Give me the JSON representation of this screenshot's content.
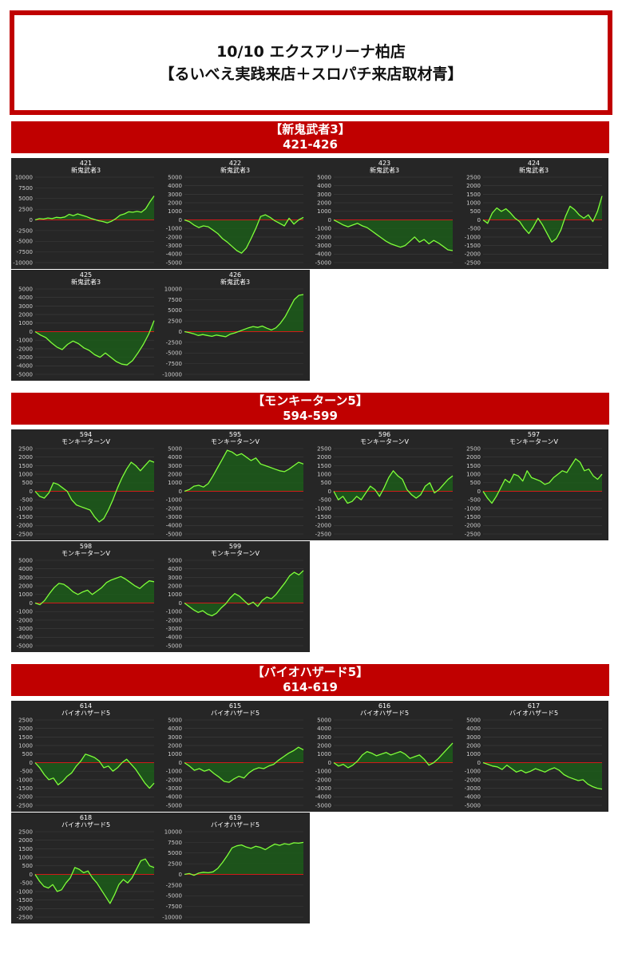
{
  "header": {
    "line1": "10/10 エクスアリーナ柏店",
    "line2": "【るいべえ実践来店＋スロパチ来店取材青】"
  },
  "sections": [
    {
      "label": "【新鬼武者3】",
      "range": "421-426"
    },
    {
      "label": "【モンキーターン5】",
      "range": "594-599"
    },
    {
      "label": "【バイオハザード5】",
      "range": "614-619"
    }
  ],
  "colors": {
    "line": "#7fff3a",
    "fill": "#1c5c1a",
    "zero": "#d11a1a",
    "banner": "#c00000",
    "panel": "#262626"
  },
  "chart_data": [
    {
      "type": "line",
      "machine": "421",
      "name": "新鬼武者3",
      "ylim": [
        -10000,
        10000
      ],
      "step": 2500,
      "values": [
        0,
        300,
        200,
        450,
        300,
        600,
        500,
        700,
        1300,
        1000,
        1400,
        1100,
        800,
        400,
        100,
        -200,
        -400,
        -700,
        -300,
        300,
        1100,
        1400,
        1900,
        1800,
        2000,
        1800,
        2600,
        4200,
        5600
      ]
    },
    {
      "type": "line",
      "machine": "422",
      "name": "新鬼武者3",
      "ylim": [
        -5000,
        5000
      ],
      "step": 1000,
      "values": [
        0,
        -200,
        -600,
        -900,
        -700,
        -800,
        -1200,
        -1600,
        -2200,
        -2600,
        -3100,
        -3600,
        -3900,
        -3300,
        -2200,
        -1000,
        400,
        600,
        300,
        -100,
        -400,
        -700,
        200,
        -500,
        0,
        300
      ]
    },
    {
      "type": "line",
      "machine": "423",
      "name": "新鬼武者3",
      "ylim": [
        -5000,
        5000
      ],
      "step": 1000,
      "values": [
        0,
        -300,
        -600,
        -800,
        -600,
        -400,
        -700,
        -900,
        -1300,
        -1700,
        -2100,
        -2500,
        -2800,
        -3000,
        -3200,
        -3000,
        -2500,
        -2000,
        -2600,
        -2300,
        -2800,
        -2400,
        -2700,
        -3100,
        -3500,
        -3600
      ]
    },
    {
      "type": "line",
      "machine": "424",
      "name": "新鬼武者3",
      "ylim": [
        -2500,
        2500
      ],
      "step": 500,
      "values": [
        0,
        -200,
        400,
        700,
        500,
        650,
        400,
        100,
        -100,
        -500,
        -800,
        -400,
        100,
        -300,
        -800,
        -1300,
        -1100,
        -600,
        200,
        800,
        600,
        300,
        100,
        300,
        -100,
        500,
        1400
      ]
    },
    {
      "type": "line",
      "machine": "425",
      "name": "新鬼武者3",
      "ylim": [
        -5000,
        5000
      ],
      "step": 1000,
      "values": [
        0,
        -400,
        -700,
        -1300,
        -1800,
        -2100,
        -1500,
        -1100,
        -1400,
        -1900,
        -2200,
        -2700,
        -3000,
        -2500,
        -3000,
        -3500,
        -3800,
        -3900,
        -3400,
        -2500,
        -1500,
        -300,
        1300
      ]
    },
    {
      "type": "line",
      "machine": "426",
      "name": "新鬼武者3",
      "ylim": [
        -10000,
        10000
      ],
      "step": 2500,
      "values": [
        0,
        -200,
        -500,
        -900,
        -700,
        -900,
        -1100,
        -800,
        -1000,
        -1200,
        -600,
        -300,
        100,
        500,
        900,
        1200,
        1000,
        1300,
        800,
        400,
        900,
        2000,
        3500,
        5500,
        7500,
        8500,
        8700
      ]
    },
    {
      "type": "line",
      "machine": "594",
      "name": "モンキーターンV",
      "ylim": [
        -2500,
        2500
      ],
      "step": 500,
      "values": [
        0,
        -300,
        -400,
        -100,
        500,
        400,
        200,
        0,
        -500,
        -800,
        -900,
        -1000,
        -1100,
        -1500,
        -1800,
        -1600,
        -1100,
        -500,
        200,
        800,
        1300,
        1700,
        1500,
        1200,
        1500,
        1800,
        1700
      ]
    },
    {
      "type": "line",
      "machine": "595",
      "name": "モンキーターンV",
      "ylim": [
        -5000,
        5000
      ],
      "step": 1000,
      "values": [
        0,
        200,
        600,
        700,
        500,
        900,
        1800,
        2800,
        3800,
        4800,
        4600,
        4200,
        4400,
        4000,
        3600,
        3900,
        3200,
        3000,
        2800,
        2600,
        2400,
        2300,
        2600,
        3000,
        3400,
        3200
      ]
    },
    {
      "type": "line",
      "machine": "596",
      "name": "モンキーターンV",
      "ylim": [
        -2500,
        2500
      ],
      "step": 500,
      "values": [
        0,
        -500,
        -300,
        -700,
        -600,
        -300,
        -500,
        -100,
        300,
        100,
        -300,
        200,
        800,
        1200,
        900,
        700,
        100,
        -200,
        -400,
        -200,
        300,
        500,
        -100,
        100,
        400,
        700,
        900
      ]
    },
    {
      "type": "line",
      "machine": "597",
      "name": "モンキーターンV",
      "ylim": [
        -2500,
        2500
      ],
      "step": 500,
      "values": [
        0,
        -400,
        -700,
        -300,
        200,
        700,
        500,
        1000,
        900,
        600,
        1200,
        800,
        700,
        600,
        400,
        500,
        800,
        1000,
        1200,
        1100,
        1500,
        1900,
        1700,
        1200,
        1300,
        900,
        700,
        1000
      ]
    },
    {
      "type": "line",
      "machine": "598",
      "name": "モンキーターンV",
      "ylim": [
        -5000,
        5000
      ],
      "step": 1000,
      "values": [
        0,
        -200,
        300,
        1100,
        1800,
        2300,
        2200,
        1800,
        1300,
        1000,
        1300,
        1500,
        1000,
        1400,
        1800,
        2400,
        2700,
        2900,
        3100,
        2800,
        2400,
        2000,
        1700,
        2200,
        2600,
        2500
      ]
    },
    {
      "type": "line",
      "machine": "599",
      "name": "モンキーターンV",
      "ylim": [
        -5000,
        5000
      ],
      "step": 1000,
      "values": [
        0,
        -400,
        -800,
        -1100,
        -900,
        -1300,
        -1500,
        -1200,
        -600,
        -100,
        600,
        1100,
        800,
        300,
        -200,
        100,
        -400,
        300,
        700,
        500,
        1000,
        1700,
        2400,
        3200,
        3600,
        3300,
        3800
      ]
    },
    {
      "type": "line",
      "machine": "614",
      "name": "バイオハザード5",
      "ylim": [
        -2500,
        2500
      ],
      "step": 500,
      "values": [
        0,
        -300,
        -700,
        -1000,
        -900,
        -1300,
        -1100,
        -800,
        -600,
        -200,
        100,
        500,
        400,
        300,
        100,
        -300,
        -200,
        -500,
        -300,
        0,
        200,
        -100,
        -400,
        -800,
        -1200,
        -1500,
        -1200
      ]
    },
    {
      "type": "line",
      "machine": "615",
      "name": "バイオハザード5",
      "ylim": [
        -5000,
        5000
      ],
      "step": 1000,
      "values": [
        0,
        -400,
        -900,
        -700,
        -1000,
        -800,
        -1300,
        -1700,
        -2200,
        -2300,
        -1900,
        -1600,
        -1800,
        -1200,
        -800,
        -600,
        -700,
        -400,
        -200,
        300,
        700,
        1100,
        1400,
        1800,
        1500
      ]
    },
    {
      "type": "line",
      "machine": "616",
      "name": "バイオハザード5",
      "ylim": [
        -5000,
        5000
      ],
      "step": 1000,
      "values": [
        0,
        -400,
        -200,
        -600,
        -300,
        200,
        900,
        1300,
        1100,
        800,
        1000,
        1200,
        900,
        1100,
        1300,
        1000,
        500,
        700,
        900,
        400,
        -300,
        0,
        500,
        1100,
        1700,
        2300
      ]
    },
    {
      "type": "line",
      "machine": "617",
      "name": "バイオハザード5",
      "ylim": [
        -5000,
        5000
      ],
      "step": 1000,
      "values": [
        0,
        -200,
        -400,
        -500,
        -800,
        -300,
        -700,
        -1100,
        -900,
        -1200,
        -1000,
        -700,
        -900,
        -1100,
        -800,
        -600,
        -900,
        -1400,
        -1700,
        -1900,
        -2100,
        -2000,
        -2500,
        -2800,
        -3000,
        -3100
      ]
    },
    {
      "type": "line",
      "machine": "618",
      "name": "バイオハザード5",
      "ylim": [
        -2500,
        2500
      ],
      "step": 500,
      "values": [
        0,
        -400,
        -700,
        -800,
        -600,
        -1000,
        -900,
        -500,
        -200,
        400,
        300,
        100,
        200,
        -200,
        -500,
        -900,
        -1300,
        -1700,
        -1200,
        -600,
        -300,
        -500,
        -200,
        300,
        800,
        900,
        500,
        400
      ]
    },
    {
      "type": "line",
      "machine": "619",
      "name": "バイオハザード5",
      "ylim": [
        -10000,
        10000
      ],
      "step": 2500,
      "values": [
        0,
        200,
        -200,
        300,
        500,
        400,
        600,
        1400,
        2800,
        4400,
        6200,
        6700,
        6900,
        6400,
        6100,
        6600,
        6300,
        5800,
        6500,
        7100,
        6800,
        7200,
        7000,
        7400,
        7300,
        7500
      ]
    }
  ]
}
